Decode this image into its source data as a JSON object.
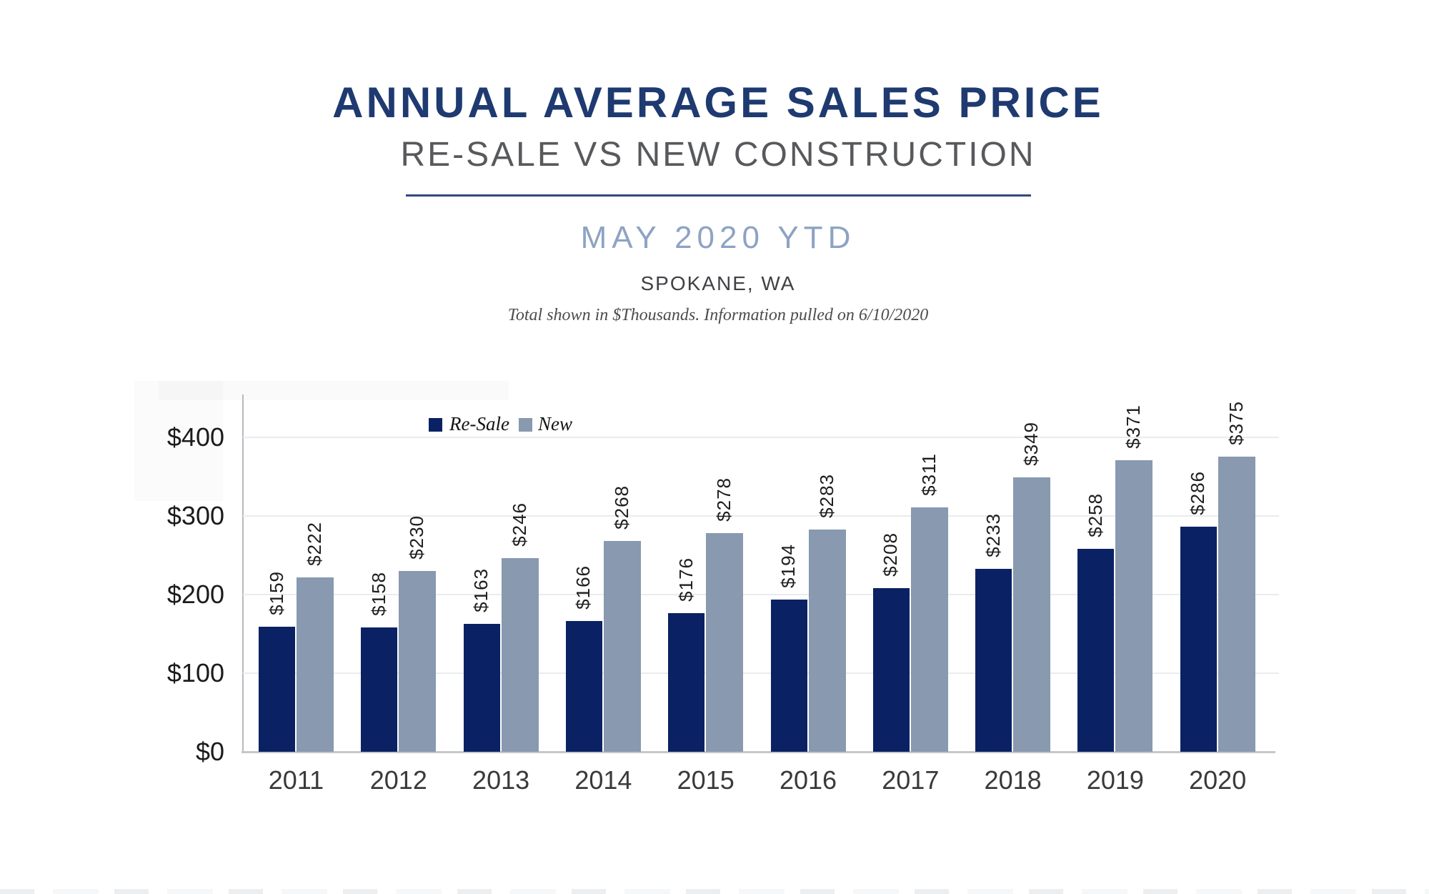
{
  "header": {
    "title": "ANNUAL AVERAGE SALES PRICE",
    "subtitle": "RE-SALE VS NEW CONSTRUCTION",
    "period": "MAY 2020 YTD",
    "location": "SPOKANE, WA",
    "note": "Total shown in $Thousands. Information pulled on 6/10/2020"
  },
  "colors": {
    "resale_bar": "#0a2263",
    "new_bar": "#8899b0",
    "title_navy": "#1e3a70",
    "divider_navy": "#32497f",
    "period_blue": "#8da3c3",
    "subtitle_gray": "#58595c",
    "gridline": "#e9ecee",
    "axis_gray": "#b7babd"
  },
  "chart_data": {
    "type": "bar",
    "title": "Annual Average Sales Price — Re-Sale vs New Construction, May 2020 YTD, Spokane, WA",
    "unit": "$Thousands",
    "value_prefix": "$",
    "categories": [
      "2011",
      "2012",
      "2013",
      "2014",
      "2015",
      "2016",
      "2017",
      "2018",
      "2019",
      "2020"
    ],
    "series": [
      {
        "name": "Re-Sale",
        "color_key": "resale_bar",
        "values": [
          159,
          158,
          163,
          166,
          176,
          194,
          208,
          233,
          258,
          286
        ],
        "labels": [
          "$159",
          "$158",
          "$163",
          "$166",
          "$176",
          "$194",
          "$208",
          "$233",
          "$258",
          "$286"
        ]
      },
      {
        "name": "New",
        "color_key": "new_bar",
        "values": [
          222,
          230,
          246,
          268,
          278,
          283,
          311,
          349,
          371,
          375
        ],
        "labels": [
          "$222",
          "$230",
          "$246",
          "$268",
          "$278",
          "$283",
          "$311",
          "$349",
          "$371",
          "$375"
        ]
      }
    ],
    "y_ticks": [
      {
        "label": "$400",
        "value": 400
      },
      {
        "label": "$300",
        "value": 300
      },
      {
        "label": "$200",
        "value": 200
      },
      {
        "label": "$100",
        "value": 100
      },
      {
        "label": "$0",
        "value": 0
      }
    ],
    "ylim": [
      0,
      455
    ],
    "grid": true,
    "legend_position": "inside-top-left",
    "data_label_rotation": 90
  }
}
